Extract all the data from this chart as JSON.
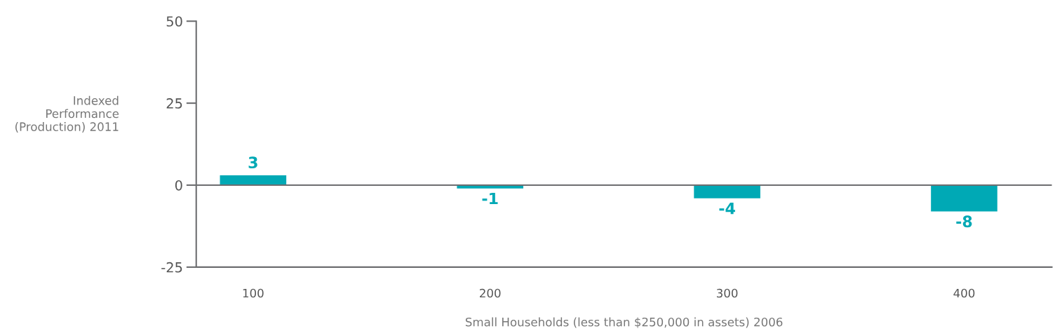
{
  "chart_data": {
    "type": "bar",
    "xlabel": "Small Households (less than $250,000 in assets) 2006",
    "ylabel": "Indexed\nPerformance\n(Production) 2011",
    "categories": [
      "100",
      "200",
      "300",
      "400"
    ],
    "values": [
      3,
      -1,
      -4,
      -8
    ],
    "color": "#00a9b5",
    "data_labels": true,
    "ylim": [
      -25,
      50
    ],
    "yticks": [
      -25,
      0,
      25,
      50
    ],
    "ref_lines": [
      {
        "axis": "y",
        "value": 0,
        "color": "#6d6e70"
      }
    ],
    "grid": false
  }
}
